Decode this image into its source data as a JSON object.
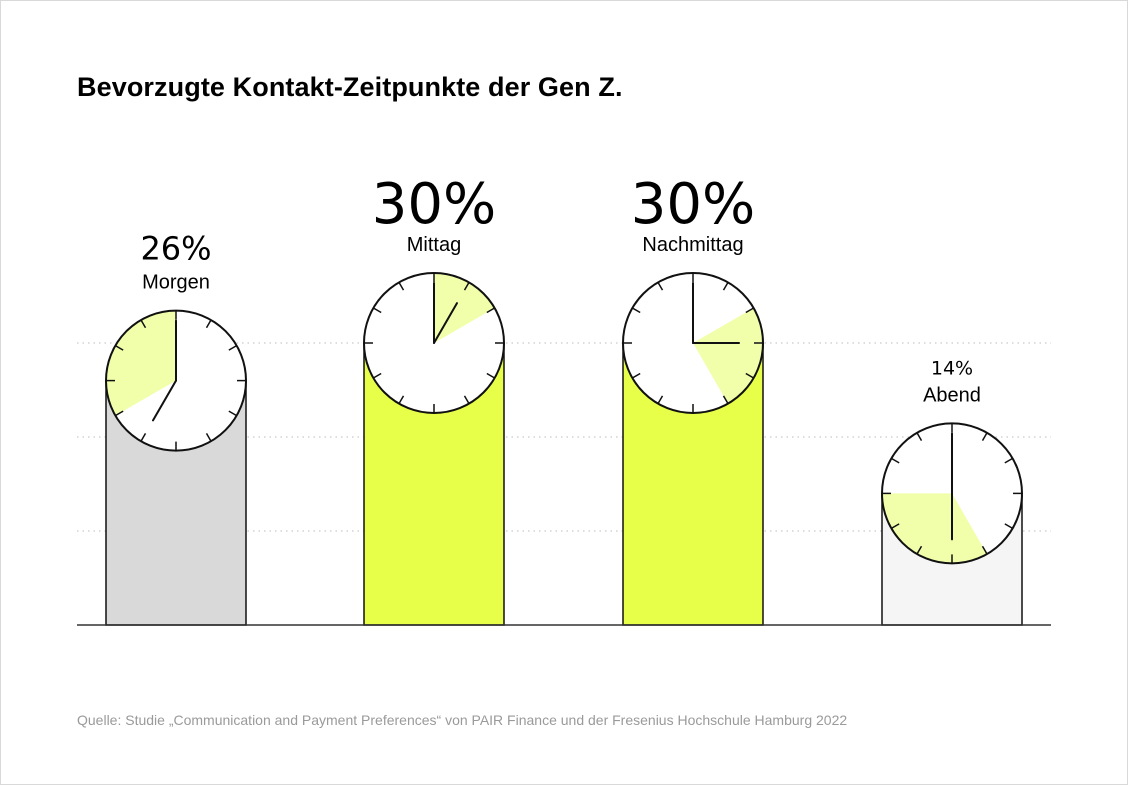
{
  "title": "Bevorzugte Kontakt-Zeitpunkte der Gen Z.",
  "source": "Quelle: Studie „Communication and Payment Preferences“ von PAIR Finance und der Fresenius Hochschule Hamburg 2022",
  "colors": {
    "highlight": "#e8ff4a",
    "pale_highlight": "#f1ffab",
    "grey_bar": "#d9d9d9",
    "light_bar": "#f5f5f5",
    "gridline": "#bdbdbd",
    "baseline": "#333333",
    "text": "#000000",
    "source_text": "#9a9a9a"
  },
  "chart_data": {
    "type": "bar",
    "title": "Bevorzugte Kontakt-Zeitpunkte der Gen Z.",
    "categories": [
      "Morgen",
      "Mittag",
      "Nachmittag",
      "Abend"
    ],
    "values": [
      26,
      30,
      30,
      14
    ],
    "value_labels": [
      "26%",
      "30%",
      "30%",
      "14%"
    ],
    "unit": "%",
    "bar_colors": [
      "#d9d9d9",
      "#e8ff4a",
      "#e8ff4a",
      "#f5f5f5"
    ],
    "ylim": [
      0,
      30
    ],
    "grid": true,
    "clock_sectors": [
      {
        "from_hour": 8,
        "to_hour": 12
      },
      {
        "from_hour": 12,
        "to_hour": 2
      },
      {
        "from_hour": 2,
        "to_hour": 5
      },
      {
        "from_hour": 5,
        "to_hour": 9
      }
    ],
    "clock_hands": [
      {
        "minute_hand_hour": 12,
        "hour_hand_hour": 7
      },
      {
        "minute_hand_hour": 12,
        "hour_hand_hour": 1
      },
      {
        "minute_hand_hour": 12,
        "hour_hand_hour": 3
      },
      {
        "minute_hand_hour": 12,
        "hour_hand_hour": 6
      }
    ]
  }
}
